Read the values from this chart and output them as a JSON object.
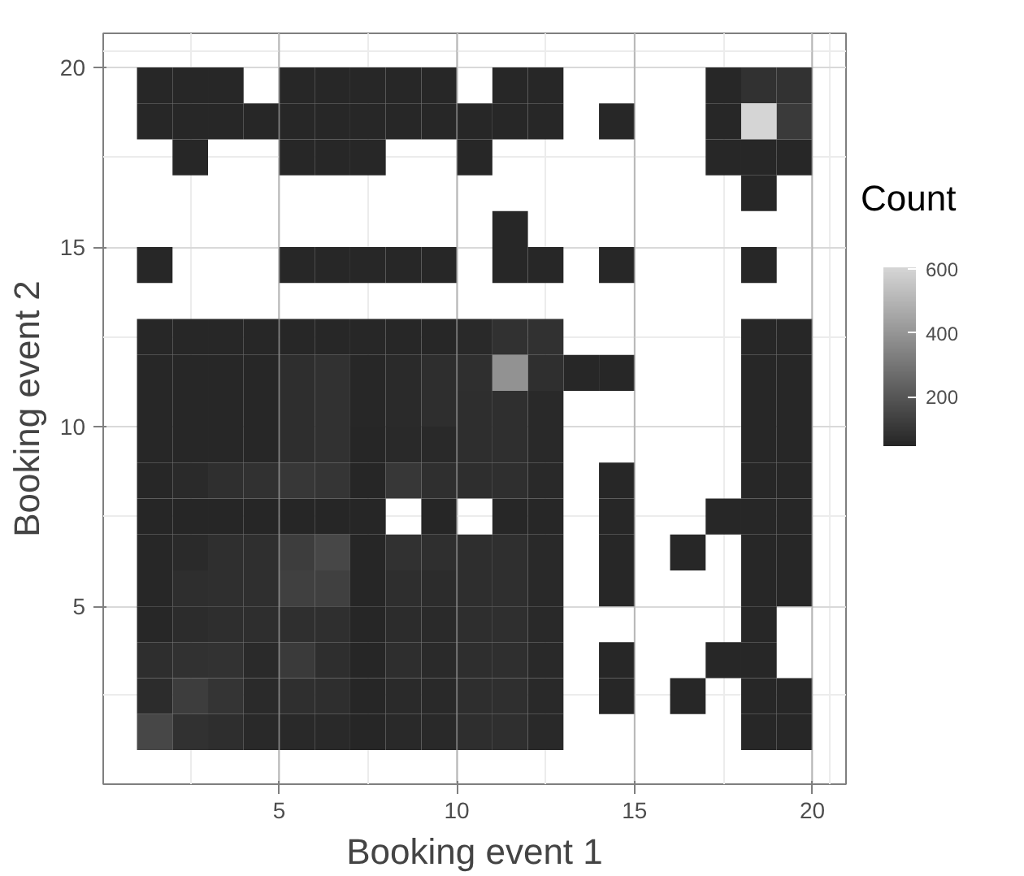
{
  "chart_data": {
    "type": "heatmap",
    "xlabel": "Booking event 1",
    "ylabel": "Booking event 2",
    "clabel": "Count",
    "x": [
      1.5,
      2.5,
      3.5,
      4.5,
      5.5,
      6.5,
      7.5,
      8.5,
      9.5,
      10.5,
      11.5,
      12.5,
      13.5,
      14.5,
      15.5,
      16.5,
      17.5,
      18.5,
      19.5
    ],
    "y": [
      19.5,
      18.5,
      17.5,
      16.5,
      15.5,
      14.5,
      12.5,
      11.5,
      10.5,
      9.5,
      8.5,
      7.5,
      6.5,
      5.5,
      4.5,
      3.5,
      2.5,
      1.5
    ],
    "xlim": [
      0.05,
      20.95
    ],
    "ylim": [
      0.05,
      20.95
    ],
    "xticks": [
      5,
      10,
      15,
      20
    ],
    "yticks": [
      5,
      10,
      15,
      20
    ],
    "clim": [
      45,
      605
    ],
    "cticks": [
      200,
      400,
      600
    ],
    "grid": true,
    "cells": [
      [
        50,
        50,
        50,
        null,
        50,
        50,
        50,
        50,
        50,
        null,
        50,
        50,
        null,
        null,
        null,
        null,
        50,
        80,
        85
      ],
      [
        50,
        50,
        50,
        50,
        50,
        50,
        50,
        50,
        50,
        50,
        50,
        50,
        null,
        50,
        null,
        null,
        50,
        600,
        110
      ],
      [
        null,
        50,
        null,
        null,
        50,
        50,
        50,
        null,
        null,
        50,
        null,
        null,
        null,
        null,
        null,
        null,
        50,
        50,
        50
      ],
      [
        null,
        null,
        null,
        null,
        null,
        null,
        null,
        null,
        null,
        null,
        null,
        null,
        null,
        null,
        null,
        null,
        null,
        50,
        null
      ],
      [
        null,
        null,
        null,
        null,
        null,
        null,
        null,
        null,
        null,
        null,
        50,
        null,
        null,
        null,
        null,
        null,
        null,
        null,
        null
      ],
      [
        50,
        null,
        null,
        null,
        50,
        50,
        50,
        50,
        50,
        null,
        50,
        50,
        null,
        50,
        null,
        null,
        null,
        50,
        null
      ],
      [
        50,
        50,
        50,
        50,
        50,
        50,
        50,
        50,
        50,
        55,
        80,
        80,
        null,
        null,
        null,
        null,
        null,
        50,
        50
      ],
      [
        50,
        50,
        50,
        50,
        70,
        80,
        50,
        60,
        70,
        75,
        390,
        75,
        50,
        50,
        null,
        null,
        null,
        50,
        50
      ],
      [
        50,
        50,
        50,
        50,
        70,
        80,
        50,
        60,
        70,
        70,
        75,
        55,
        null,
        null,
        null,
        null,
        null,
        50,
        50
      ],
      [
        50,
        50,
        50,
        50,
        70,
        80,
        45,
        55,
        55,
        70,
        75,
        55,
        null,
        null,
        null,
        null,
        null,
        50,
        50
      ],
      [
        50,
        60,
        75,
        80,
        100,
        95,
        45,
        100,
        75,
        70,
        75,
        55,
        null,
        50,
        null,
        null,
        null,
        50,
        50
      ],
      [
        45,
        45,
        45,
        45,
        45,
        45,
        45,
        null,
        45,
        null,
        50,
        50,
        null,
        50,
        null,
        null,
        50,
        50,
        50
      ],
      [
        50,
        60,
        75,
        75,
        120,
        150,
        45,
        80,
        75,
        70,
        75,
        55,
        null,
        50,
        null,
        50,
        null,
        50,
        50
      ],
      [
        50,
        70,
        75,
        75,
        130,
        130,
        45,
        70,
        65,
        70,
        75,
        55,
        null,
        50,
        null,
        null,
        null,
        50,
        50
      ],
      [
        50,
        65,
        70,
        70,
        75,
        75,
        45,
        65,
        60,
        70,
        75,
        55,
        null,
        null,
        null,
        null,
        null,
        50,
        null
      ],
      [
        70,
        80,
        85,
        60,
        110,
        70,
        45,
        70,
        60,
        70,
        75,
        55,
        null,
        50,
        null,
        null,
        50,
        50,
        null
      ],
      [
        65,
        120,
        90,
        60,
        75,
        70,
        45,
        60,
        55,
        70,
        75,
        55,
        null,
        50,
        null,
        50,
        null,
        50,
        50
      ],
      [
        150,
        80,
        70,
        55,
        55,
        55,
        45,
        55,
        55,
        70,
        75,
        55,
        null,
        null,
        null,
        null,
        null,
        50,
        50
      ]
    ]
  }
}
